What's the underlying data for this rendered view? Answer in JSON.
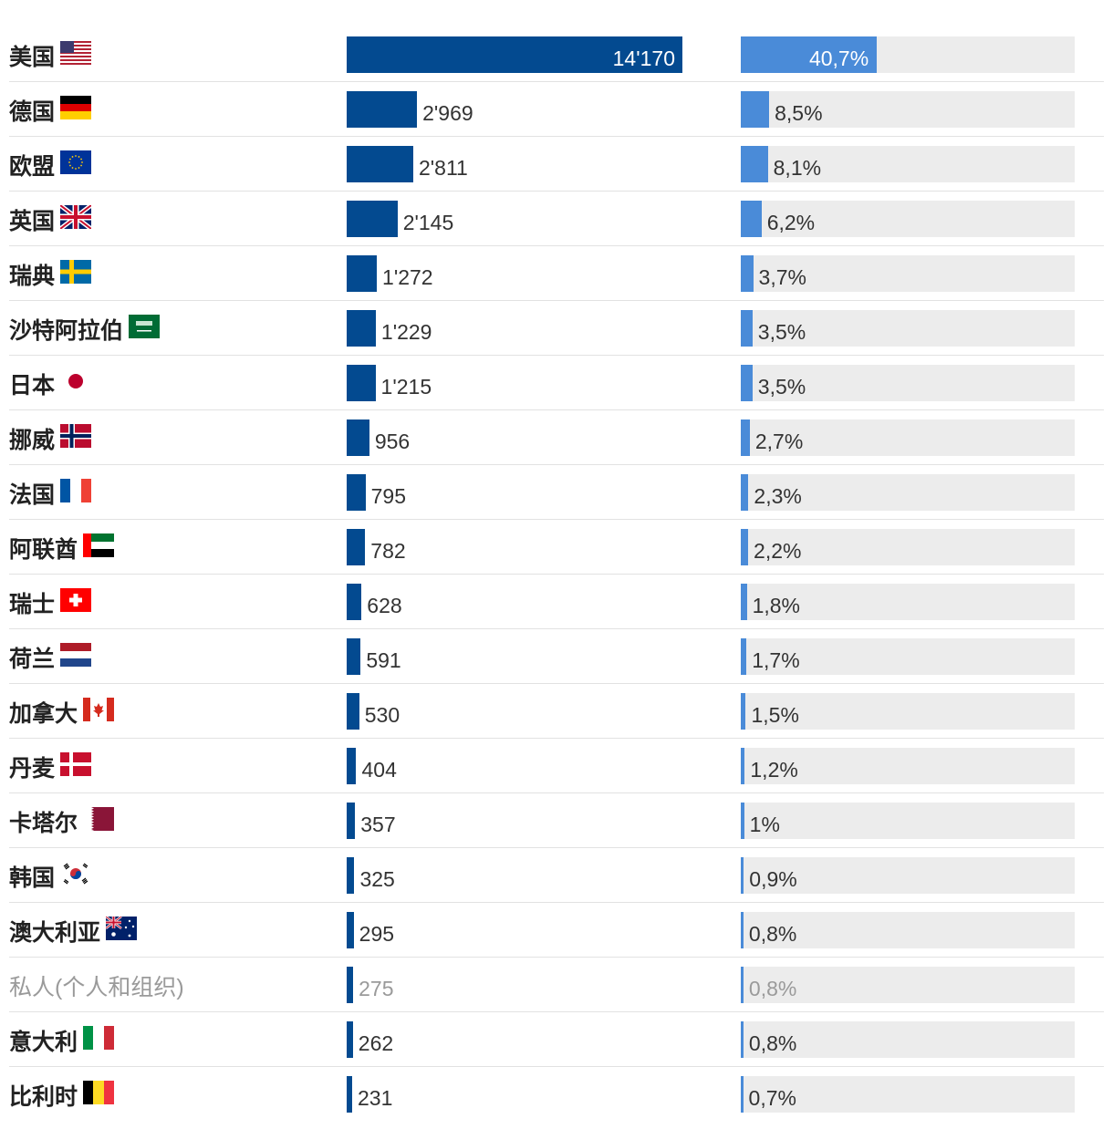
{
  "chart_data": {
    "type": "bar",
    "columns": [
      "value",
      "share_percent"
    ],
    "rows": [
      {
        "name": "美国",
        "value": 14170,
        "value_label": "14'170",
        "share": 40.7,
        "share_label": "40,7%",
        "flag": "us-flag-icon"
      },
      {
        "name": "德国",
        "value": 2969,
        "value_label": "2'969",
        "share": 8.5,
        "share_label": "8,5%",
        "flag": "germany-flag-icon"
      },
      {
        "name": "欧盟",
        "value": 2811,
        "value_label": "2'811",
        "share": 8.1,
        "share_label": "8,1%",
        "flag": "eu-flag-icon"
      },
      {
        "name": "英国",
        "value": 2145,
        "value_label": "2'145",
        "share": 6.2,
        "share_label": "6,2%",
        "flag": "uk-flag-icon"
      },
      {
        "name": "瑞典",
        "value": 1272,
        "value_label": "1'272",
        "share": 3.7,
        "share_label": "3,7%",
        "flag": "sweden-flag-icon"
      },
      {
        "name": "沙特阿拉伯",
        "value": 1229,
        "value_label": "1'229",
        "share": 3.5,
        "share_label": "3,5%",
        "flag": "saudi-arabia-flag-icon"
      },
      {
        "name": "日本",
        "value": 1215,
        "value_label": "1'215",
        "share": 3.5,
        "share_label": "3,5%",
        "flag": "japan-flag-icon"
      },
      {
        "name": "挪威",
        "value": 956,
        "value_label": "956",
        "share": 2.7,
        "share_label": "2,7%",
        "flag": "norway-flag-icon"
      },
      {
        "name": "法国",
        "value": 795,
        "value_label": "795",
        "share": 2.3,
        "share_label": "2,3%",
        "flag": "france-flag-icon"
      },
      {
        "name": "阿联酋",
        "value": 782,
        "value_label": "782",
        "share": 2.2,
        "share_label": "2,2%",
        "flag": "uae-flag-icon"
      },
      {
        "name": "瑞士",
        "value": 628,
        "value_label": "628",
        "share": 1.8,
        "share_label": "1,8%",
        "flag": "switzerland-flag-icon"
      },
      {
        "name": "荷兰",
        "value": 591,
        "value_label": "591",
        "share": 1.7,
        "share_label": "1,7%",
        "flag": "netherlands-flag-icon"
      },
      {
        "name": "加拿大",
        "value": 530,
        "value_label": "530",
        "share": 1.5,
        "share_label": "1,5%",
        "flag": "canada-flag-icon"
      },
      {
        "name": "丹麦",
        "value": 404,
        "value_label": "404",
        "share": 1.2,
        "share_label": "1,2%",
        "flag": "denmark-flag-icon"
      },
      {
        "name": "卡塔尔",
        "value": 357,
        "value_label": "357",
        "share": 1.0,
        "share_label": "1%",
        "flag": "qatar-flag-icon"
      },
      {
        "name": "韩国",
        "value": 325,
        "value_label": "325",
        "share": 0.9,
        "share_label": "0,9%",
        "flag": "south-korea-flag-icon"
      },
      {
        "name": "澳大利亚",
        "value": 295,
        "value_label": "295",
        "share": 0.8,
        "share_label": "0,8%",
        "flag": "australia-flag-icon"
      },
      {
        "name": "私人(个人和组织)",
        "value": 275,
        "value_label": "275",
        "share": 0.8,
        "share_label": "0,8%",
        "flag": "",
        "muted": true
      },
      {
        "name": "意大利",
        "value": 262,
        "value_label": "262",
        "share": 0.8,
        "share_label": "0,8%",
        "flag": "italy-flag-icon"
      },
      {
        "name": "比利时",
        "value": 231,
        "value_label": "231",
        "share": 0.7,
        "share_label": "0,7%",
        "flag": "belgium-flag-icon"
      }
    ],
    "value_max": 14170,
    "share_max": 100,
    "grid": false,
    "legend": "none",
    "colors": {
      "value_bar": "#034a90",
      "share_bar": "#4a8bd8",
      "share_track": "#ececec",
      "muted_text": "#9a9a9a"
    }
  }
}
